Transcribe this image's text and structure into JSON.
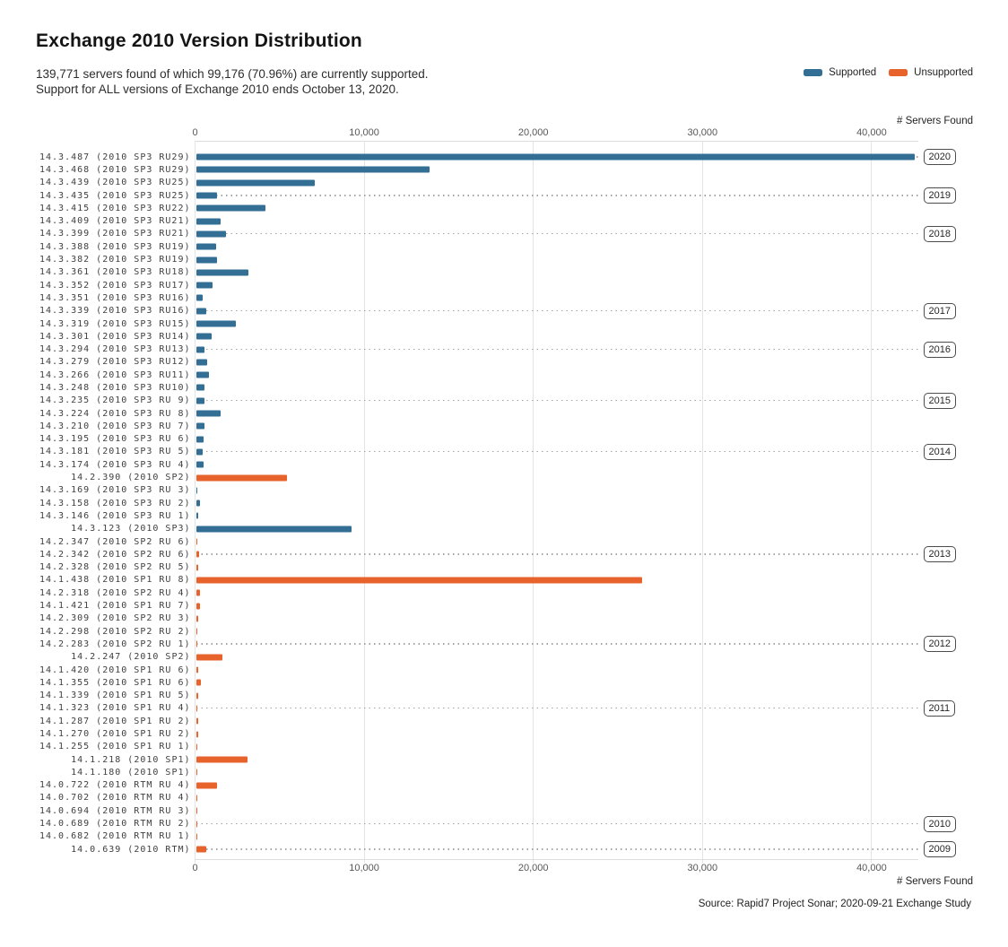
{
  "chart_data": {
    "type": "bar",
    "orientation": "horizontal",
    "title": "Exchange 2010 Version Distribution",
    "subtitle_line1": "139,771 servers found of which 99,176 (70.96%) are currently supported.",
    "subtitle_line2": "Support for ALL versions of Exchange 2010 ends October 13, 2020.",
    "legend": [
      {
        "name": "Supported",
        "status": "supported",
        "color": "#336f94"
      },
      {
        "name": "Unsupported",
        "status": "unsupported",
        "color": "#e8622c"
      }
    ],
    "axis": {
      "title": "# Servers Found",
      "tick_values": [
        0,
        10000,
        20000,
        30000,
        40000
      ],
      "tick_labels": [
        "0",
        "10,000",
        "20,000",
        "30,000",
        "40,000"
      ],
      "xlim": [
        0,
        42700
      ],
      "grid": true
    },
    "rows": [
      {
        "label": "14.3.487 (2010 SP3 RU29)",
        "value": 42500,
        "status": "supported",
        "year": "2020"
      },
      {
        "label": "14.3.468 (2010 SP3 RU29)",
        "value": 13800,
        "status": "supported"
      },
      {
        "label": "14.3.439 (2010 SP3 RU25)",
        "value": 7000,
        "status": "supported"
      },
      {
        "label": "14.3.435 (2010 SP3 RU25)",
        "value": 1240,
        "status": "supported",
        "year": "2019"
      },
      {
        "label": "14.3.415 (2010 SP3 RU22)",
        "value": 4100,
        "status": "supported"
      },
      {
        "label": "14.3.409 (2010 SP3 RU21)",
        "value": 1450,
        "status": "supported"
      },
      {
        "label": "14.3.399 (2010 SP3 RU21)",
        "value": 1760,
        "status": "supported",
        "year": "2018"
      },
      {
        "label": "14.3.388 (2010 SP3 RU19)",
        "value": 1200,
        "status": "supported"
      },
      {
        "label": "14.3.382 (2010 SP3 RU19)",
        "value": 1220,
        "status": "supported"
      },
      {
        "label": "14.3.361 (2010 SP3 RU18)",
        "value": 3080,
        "status": "supported"
      },
      {
        "label": "14.3.352 (2010 SP3 RU17)",
        "value": 1000,
        "status": "supported"
      },
      {
        "label": "14.3.351 (2010 SP3 RU16)",
        "value": 380,
        "status": "supported"
      },
      {
        "label": "14.3.339 (2010 SP3 RU16)",
        "value": 610,
        "status": "supported",
        "year": "2017"
      },
      {
        "label": "14.3.319 (2010 SP3 RU15)",
        "value": 2360,
        "status": "supported"
      },
      {
        "label": "14.3.301 (2010 SP3 RU14)",
        "value": 950,
        "status": "supported"
      },
      {
        "label": "14.3.294 (2010 SP3 RU13)",
        "value": 490,
        "status": "supported",
        "year": "2016"
      },
      {
        "label": "14.3.279 (2010 SP3 RU12)",
        "value": 650,
        "status": "supported"
      },
      {
        "label": "14.3.266 (2010 SP3 RU11)",
        "value": 790,
        "status": "supported"
      },
      {
        "label": "14.3.248 (2010 SP3 RU10)",
        "value": 520,
        "status": "supported"
      },
      {
        "label": "14.3.235 (2010 SP3 RU 9)",
        "value": 510,
        "status": "supported",
        "year": "2015"
      },
      {
        "label": "14.3.224 (2010 SP3 RU 8)",
        "value": 1470,
        "status": "supported"
      },
      {
        "label": "14.3.210 (2010 SP3 RU 7)",
        "value": 520,
        "status": "supported"
      },
      {
        "label": "14.3.195 (2010 SP3 RU 6)",
        "value": 440,
        "status": "supported"
      },
      {
        "label": "14.3.181 (2010 SP3 RU 5)",
        "value": 420,
        "status": "supported",
        "year": "2014"
      },
      {
        "label": "14.3.174 (2010 SP3 RU 4)",
        "value": 450,
        "status": "supported"
      },
      {
        "label": "14.2.390 (2010 SP2)",
        "value": 5360,
        "status": "unsupported"
      },
      {
        "label": "14.3.169 (2010 SP3 RU 3)",
        "value": 100,
        "status": "supported"
      },
      {
        "label": "14.3.158 (2010 SP3 RU 2)",
        "value": 260,
        "status": "supported"
      },
      {
        "label": "14.3.146 (2010 SP3 RU 1)",
        "value": 120,
        "status": "supported"
      },
      {
        "label": "14.3.123 (2010 SP3)",
        "value": 9220,
        "status": "supported"
      },
      {
        "label": "14.2.347 (2010 SP2 RU 6)",
        "value": 100,
        "status": "unsupported"
      },
      {
        "label": "14.2.342 (2010 SP2 RU 6)",
        "value": 170,
        "status": "unsupported",
        "year": "2013"
      },
      {
        "label": "14.2.328 (2010 SP2 RU 5)",
        "value": 150,
        "status": "unsupported"
      },
      {
        "label": "14.1.438 (2010 SP1 RU 8)",
        "value": 26400,
        "status": "unsupported"
      },
      {
        "label": "14.2.318 (2010 SP2 RU 4)",
        "value": 220,
        "status": "unsupported"
      },
      {
        "label": "14.1.421 (2010 SP1 RU 7)",
        "value": 240,
        "status": "unsupported"
      },
      {
        "label": "14.2.309 (2010 SP2 RU 3)",
        "value": 130,
        "status": "unsupported"
      },
      {
        "label": "14.2.298 (2010 SP2 RU 2)",
        "value": 100,
        "status": "unsupported"
      },
      {
        "label": "14.2.283 (2010 SP2 RU 1)",
        "value": 50,
        "status": "unsupported",
        "year": "2012"
      },
      {
        "label": "14.2.247 (2010 SP2)",
        "value": 1590,
        "status": "unsupported"
      },
      {
        "label": "14.1.420 (2010 SP1 RU 6)",
        "value": 130,
        "status": "unsupported"
      },
      {
        "label": "14.1.355 (2010 SP1 RU 6)",
        "value": 280,
        "status": "unsupported"
      },
      {
        "label": "14.1.339 (2010 SP1 RU 5)",
        "value": 110,
        "status": "unsupported"
      },
      {
        "label": "14.1.323 (2010 SP1 RU 4)",
        "value": 60,
        "status": "unsupported",
        "year": "2011"
      },
      {
        "label": "14.1.287 (2010 SP1 RU 2)",
        "value": 150,
        "status": "unsupported"
      },
      {
        "label": "14.1.270 (2010 SP1 RU 2)",
        "value": 110,
        "status": "unsupported"
      },
      {
        "label": "14.1.255 (2010 SP1 RU 1)",
        "value": 20,
        "status": "unsupported"
      },
      {
        "label": "14.1.218 (2010 SP1)",
        "value": 3050,
        "status": "unsupported"
      },
      {
        "label": "14.1.180 (2010 SP1)",
        "value": 20,
        "status": "unsupported"
      },
      {
        "label": "14.0.722 (2010 RTM RU 4)",
        "value": 1230,
        "status": "unsupported"
      },
      {
        "label": "14.0.702 (2010 RTM RU 4)",
        "value": 60,
        "status": "unsupported"
      },
      {
        "label": "14.0.694 (2010 RTM RU 3)",
        "value": 15,
        "status": "unsupported"
      },
      {
        "label": "14.0.689 (2010 RTM RU 2)",
        "value": 25,
        "status": "unsupported",
        "year": "2010"
      },
      {
        "label": "14.0.682 (2010 RTM RU 1)",
        "value": 50,
        "status": "unsupported"
      },
      {
        "label": "14.0.639 (2010 RTM)",
        "value": 630,
        "status": "unsupported",
        "year": "2009"
      }
    ],
    "source": "Source: Rapid7 Project Sonar; 2020-09-21 Exchange Study"
  }
}
